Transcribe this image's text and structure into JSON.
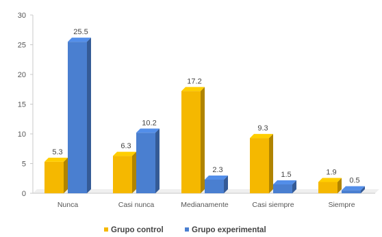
{
  "chart_data": {
    "type": "bar",
    "style": "3d-column",
    "categories": [
      "Nunca",
      "Casi nunca",
      "Medianamente",
      "Casi siempre",
      "Siempre"
    ],
    "series": [
      {
        "name": "Grupo control",
        "color": "#f5b800",
        "values": [
          5.3,
          6.3,
          17.2,
          9.3,
          1.9
        ],
        "labels": [
          "5.3",
          "6.3",
          "17.2",
          "9.3",
          "1.9"
        ]
      },
      {
        "name": "Grupo experimental",
        "color": "#4a7fd0",
        "values": [
          25.5,
          10.2,
          2.3,
          1.5,
          0.5
        ],
        "labels": [
          "25.5",
          "10.2",
          "2.3",
          "1.5",
          "0.5"
        ]
      }
    ],
    "yticks": [
      "0",
      "5",
      "10",
      "15",
      "20",
      "25",
      "30"
    ],
    "ylim": [
      0,
      30
    ],
    "grid": false,
    "legend_position": "bottom",
    "title": "",
    "xlabel": "",
    "ylabel": ""
  }
}
